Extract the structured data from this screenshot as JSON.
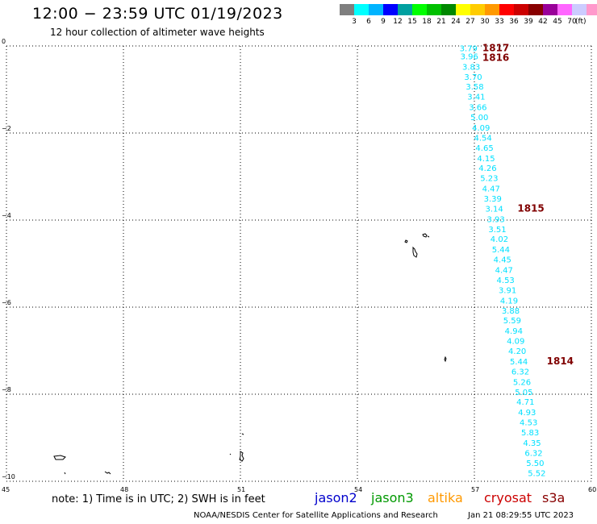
{
  "header": {
    "title": "12:00 − 23:59 UTC 01/19/2023",
    "subtitle": "12 hour collection of altimeter wave heights"
  },
  "colorbar": {
    "colors": [
      "#7f7f7f",
      "#00ffff",
      "#00b4ff",
      "#0000ff",
      "#00a0a0",
      "#00ff00",
      "#00c000",
      "#008800",
      "#ffff00",
      "#ffcc00",
      "#ff9900",
      "#ff0000",
      "#cc0000",
      "#880000",
      "#990099",
      "#ff66ff",
      "#ccccff",
      "#ff99cc",
      "#000000"
    ],
    "labels": [
      "3",
      "6",
      "9",
      "12",
      "15",
      "18",
      "21",
      "24",
      "27",
      "30",
      "33",
      "36",
      "39",
      "42",
      "45",
      "70"
    ],
    "unit": "(ft)"
  },
  "map": {
    "lon_range": [
      45,
      60
    ],
    "lat_range": [
      -10,
      0
    ],
    "x_ticks": [
      "45",
      "48",
      "51",
      "54",
      "57",
      "60"
    ],
    "y_ticks": [
      "0",
      "−2",
      "−4",
      "−6",
      "−8",
      "−10"
    ],
    "grid": true,
    "wave_color": "#00e0ff",
    "pass_color": "#800000",
    "wave_heights": [
      {
        "lat": -0.05,
        "lon": 56.85,
        "v": "3.79"
      },
      {
        "lat": -0.23,
        "lon": 56.87,
        "v": "3.96"
      },
      {
        "lat": -0.47,
        "lon": 56.92,
        "v": "3.83"
      },
      {
        "lat": -0.7,
        "lon": 56.97,
        "v": "3.70"
      },
      {
        "lat": -0.93,
        "lon": 57.01,
        "v": "3.58"
      },
      {
        "lat": -1.16,
        "lon": 57.05,
        "v": "3.41"
      },
      {
        "lat": -1.4,
        "lon": 57.09,
        "v": "3.66"
      },
      {
        "lat": -1.63,
        "lon": 57.13,
        "v": "5.00"
      },
      {
        "lat": -1.87,
        "lon": 57.17,
        "v": "4.09"
      },
      {
        "lat": -2.1,
        "lon": 57.22,
        "v": "4.54"
      },
      {
        "lat": -2.33,
        "lon": 57.26,
        "v": "4.65"
      },
      {
        "lat": -2.57,
        "lon": 57.3,
        "v": "4.15"
      },
      {
        "lat": -2.8,
        "lon": 57.34,
        "v": "4.26"
      },
      {
        "lat": -3.03,
        "lon": 57.38,
        "v": "5.23"
      },
      {
        "lat": -3.27,
        "lon": 57.43,
        "v": "4.47"
      },
      {
        "lat": -3.5,
        "lon": 57.47,
        "v": "3.39"
      },
      {
        "lat": -3.73,
        "lon": 57.51,
        "v": "3.14"
      },
      {
        "lat": -3.97,
        "lon": 57.55,
        "v": "3.93"
      },
      {
        "lat": -4.2,
        "lon": 57.59,
        "v": "3.51"
      },
      {
        "lat": -4.43,
        "lon": 57.64,
        "v": "4.02"
      },
      {
        "lat": -4.67,
        "lon": 57.68,
        "v": "5.44"
      },
      {
        "lat": -4.9,
        "lon": 57.72,
        "v": "4.45"
      },
      {
        "lat": -5.14,
        "lon": 57.76,
        "v": "4.47"
      },
      {
        "lat": -5.37,
        "lon": 57.8,
        "v": "4.53"
      },
      {
        "lat": -5.6,
        "lon": 57.85,
        "v": "3.91"
      },
      {
        "lat": -5.84,
        "lon": 57.89,
        "v": "4.19"
      },
      {
        "lat": -6.07,
        "lon": 57.93,
        "v": "3.88"
      },
      {
        "lat": -6.3,
        "lon": 57.97,
        "v": "5.59"
      },
      {
        "lat": -6.54,
        "lon": 58.01,
        "v": "4.94"
      },
      {
        "lat": -6.77,
        "lon": 58.06,
        "v": "4.09"
      },
      {
        "lat": -7.0,
        "lon": 58.1,
        "v": "4.20"
      },
      {
        "lat": -7.24,
        "lon": 58.14,
        "v": "5.44"
      },
      {
        "lat": -7.47,
        "lon": 58.18,
        "v": "6.32"
      },
      {
        "lat": -7.71,
        "lon": 58.22,
        "v": "5.26"
      },
      {
        "lat": -7.94,
        "lon": 58.27,
        "v": "5.05"
      },
      {
        "lat": -8.17,
        "lon": 58.31,
        "v": "4.71"
      },
      {
        "lat": -8.41,
        "lon": 58.35,
        "v": "4.93"
      },
      {
        "lat": -8.64,
        "lon": 58.39,
        "v": "4.53"
      },
      {
        "lat": -8.87,
        "lon": 58.43,
        "v": "5.83"
      },
      {
        "lat": -9.11,
        "lon": 58.48,
        "v": "4.35"
      },
      {
        "lat": -9.34,
        "lon": 58.52,
        "v": "6.32"
      },
      {
        "lat": -9.57,
        "lon": 58.56,
        "v": "5.50"
      },
      {
        "lat": -9.81,
        "lon": 58.6,
        "v": "5.52"
      }
    ],
    "pass_labels": [
      {
        "lat": -0.05,
        "lon": 57.55,
        "v": "1817"
      },
      {
        "lat": -0.27,
        "lon": 57.55,
        "v": "1816"
      },
      {
        "lat": -3.73,
        "lon": 58.45,
        "v": "1815"
      },
      {
        "lat": -7.24,
        "lon": 59.2,
        "v": "1814"
      }
    ]
  },
  "footer": {
    "note": "note: 1) Time is in UTC; 2) SWH is in feet",
    "legend": [
      {
        "name": "jason2",
        "color": "#0000cc"
      },
      {
        "name": "jason3",
        "color": "#009900"
      },
      {
        "name": "altika",
        "color": "#ff9900"
      },
      {
        "name": "cryosat",
        "color": "#cc0000"
      },
      {
        "name": "s3a",
        "color": "#880000"
      }
    ],
    "credit": "NOAA/NESDIS Center for Satellite Applications and Research",
    "timestamp": "Jan 21 08:29:55 UTC 2023"
  }
}
